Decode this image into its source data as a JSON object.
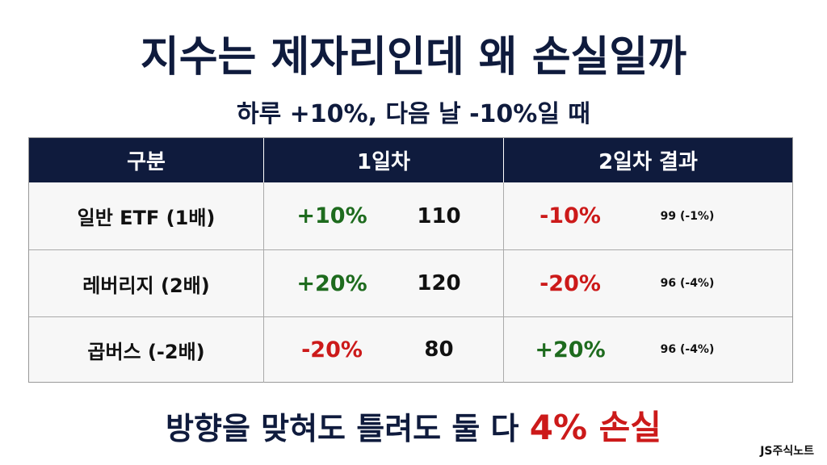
{
  "header": {
    "title": "지수는 제자리인데 왜 손실일까",
    "subtitle": "하루 +10%, 다음 날 -10%일 때"
  },
  "table": {
    "columns": [
      "구분",
      "1일차",
      "2일차 결과"
    ],
    "rows": [
      [
        "일반 ETF (1배)",
        "+10%",
        "110",
        "-10%",
        "99 (-1%)"
      ],
      [
        "레버리지 (2배)",
        "+20%",
        "120",
        "-20%",
        "96 (-4%)"
      ],
      [
        "곱버스 (-2배)",
        "-20%",
        "80",
        "+20%",
        "96 (-4%)"
      ]
    ]
  },
  "footer": {
    "text": "방향을 맞혀도 틀려도 둘 다",
    "highlight": "4% 손실"
  },
  "brand": "JS주식노트"
}
